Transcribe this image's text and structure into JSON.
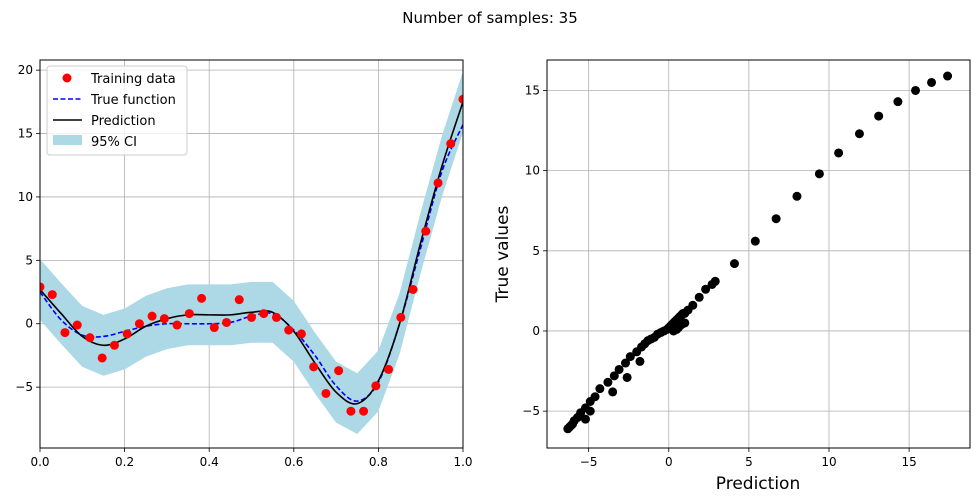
{
  "suptitle": "Number of samples: 35",
  "colors": {
    "training": "#ff0000",
    "true_function": "#0000ff",
    "prediction": "#000000",
    "ci": "#add8e6",
    "grid": "#b0b0b0",
    "scatter": "#000000"
  },
  "chart_data": [
    {
      "type": "line",
      "title": "",
      "xlabel": "",
      "ylabel": "",
      "xlim": [
        0,
        1
      ],
      "ylim": [
        -9.8,
        20.8
      ],
      "xticks": [
        0,
        0.2,
        0.4,
        0.6,
        0.8,
        1.0
      ],
      "xtick_labels": [
        "0.0",
        "0.2",
        "0.4",
        "0.6",
        "0.8",
        "1.0"
      ],
      "yticks": [
        -5,
        0,
        5,
        10,
        15,
        20
      ],
      "ytick_labels": [
        "−5",
        "0",
        "5",
        "10",
        "15",
        "20"
      ],
      "grid": true,
      "legend_position": "top-left",
      "legend": [
        "Training data",
        "True function",
        "Prediction",
        "95% CI"
      ],
      "training_data": {
        "x": [
          0.0,
          0.029,
          0.059,
          0.088,
          0.118,
          0.147,
          0.176,
          0.206,
          0.235,
          0.265,
          0.294,
          0.324,
          0.353,
          0.382,
          0.412,
          0.441,
          0.471,
          0.5,
          0.529,
          0.559,
          0.588,
          0.618,
          0.647,
          0.676,
          0.706,
          0.735,
          0.765,
          0.794,
          0.824,
          0.853,
          0.882,
          0.912,
          0.941,
          0.971,
          1.0
        ],
        "y": [
          2.9,
          2.3,
          -0.7,
          -0.1,
          -1.1,
          -2.7,
          -1.7,
          -0.8,
          0.0,
          0.6,
          0.4,
          -0.1,
          0.8,
          2.0,
          -0.3,
          0.1,
          1.9,
          0.5,
          0.8,
          0.5,
          -0.5,
          -0.8,
          -3.4,
          -5.5,
          -3.7,
          -6.9,
          -6.9,
          -4.9,
          -3.6,
          0.5,
          2.7,
          7.3,
          11.1,
          14.2,
          17.7
        ]
      },
      "true_function": {
        "x": [
          0.0,
          0.05,
          0.1,
          0.15,
          0.2,
          0.25,
          0.3,
          0.35,
          0.4,
          0.45,
          0.5,
          0.55,
          0.6,
          0.65,
          0.7,
          0.75,
          0.8,
          0.85,
          0.9,
          0.95,
          1.0
        ],
        "y": [
          2.5,
          0.3,
          -0.9,
          -1.0,
          -0.6,
          -0.2,
          0.0,
          0.0,
          0.0,
          0.1,
          0.6,
          0.8,
          -0.5,
          -2.5,
          -4.9,
          -6.1,
          -4.6,
          0.0,
          6.0,
          12.0,
          15.7
        ]
      },
      "prediction": {
        "x": [
          0.0,
          0.05,
          0.1,
          0.15,
          0.2,
          0.25,
          0.3,
          0.35,
          0.4,
          0.45,
          0.5,
          0.55,
          0.6,
          0.65,
          0.7,
          0.75,
          0.8,
          0.85,
          0.9,
          0.95,
          1.0
        ],
        "y": [
          2.7,
          0.8,
          -1.0,
          -1.7,
          -1.2,
          -0.2,
          0.4,
          0.7,
          0.7,
          0.7,
          0.9,
          0.9,
          -0.6,
          -3.1,
          -5.4,
          -6.3,
          -4.5,
          0.0,
          6.4,
          12.4,
          17.5
        ]
      },
      "ci_half_width": 2.4
    },
    {
      "type": "scatter",
      "title": "",
      "xlabel": "Prediction",
      "ylabel": "True values",
      "xlim": [
        -7.6,
        18.8
      ],
      "ylim": [
        -7.3,
        16.9
      ],
      "xticks": [
        -5,
        0,
        5,
        10,
        15
      ],
      "xtick_labels": [
        "−5",
        "0",
        "5",
        "10",
        "15"
      ],
      "yticks": [
        -5,
        0,
        5,
        10,
        15
      ],
      "ytick_labels": [
        "−5",
        "0",
        "5",
        "10",
        "15"
      ],
      "grid": true,
      "points": {
        "x": [
          -6.3,
          -6.2,
          -6.1,
          -6.0,
          -5.9,
          -5.7,
          -5.5,
          -5.2,
          -4.9,
          -4.6,
          -4.3,
          -3.8,
          -3.4,
          -3.1,
          -2.7,
          -2.4,
          -2.0,
          -1.7,
          -1.5,
          -1.3,
          -1.1,
          -0.9,
          -0.7,
          -0.5,
          -0.3,
          -0.1,
          0.0,
          0.1,
          0.2,
          0.3,
          0.4,
          0.5,
          0.6,
          0.7,
          0.8,
          0.9,
          1.0,
          1.2,
          1.5,
          1.9,
          2.3,
          2.7,
          2.9,
          4.1,
          5.4,
          6.7,
          8.0,
          9.4,
          10.6,
          11.9,
          13.1,
          14.3,
          15.4,
          16.4,
          17.4,
          -4.9,
          -5.2,
          -3.5,
          -2.6,
          -1.8,
          0.6,
          0.8,
          1.0,
          0.5,
          0.3
        ],
        "y": [
          -6.1,
          -6.0,
          -5.9,
          -5.8,
          -5.6,
          -5.4,
          -5.1,
          -4.8,
          -4.4,
          -4.1,
          -3.6,
          -3.2,
          -2.8,
          -2.4,
          -2.0,
          -1.6,
          -1.3,
          -1.0,
          -0.8,
          -0.6,
          -0.5,
          -0.4,
          -0.2,
          -0.1,
          0.0,
          0.1,
          0.2,
          0.3,
          0.4,
          0.5,
          0.6,
          0.7,
          0.8,
          0.9,
          1.0,
          1.1,
          1.1,
          1.3,
          1.6,
          2.1,
          2.6,
          2.9,
          3.1,
          4.2,
          5.6,
          7.0,
          8.4,
          9.8,
          11.1,
          12.3,
          13.4,
          14.3,
          15.0,
          15.5,
          15.9,
          -5.0,
          -5.5,
          -3.8,
          -2.9,
          -1.9,
          0.2,
          0.4,
          0.5,
          0.1,
          0.0
        ]
      }
    }
  ]
}
